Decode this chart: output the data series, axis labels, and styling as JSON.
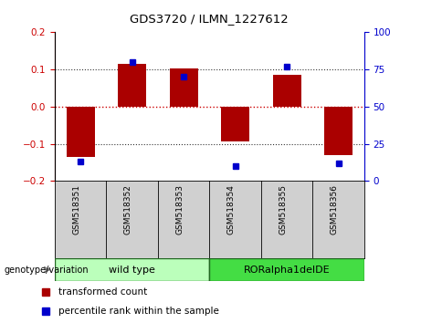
{
  "title": "GDS3720 / ILMN_1227612",
  "samples": [
    "GSM518351",
    "GSM518352",
    "GSM518353",
    "GSM518354",
    "GSM518355",
    "GSM518356"
  ],
  "bar_values": [
    -0.135,
    0.115,
    0.103,
    -0.095,
    0.085,
    -0.13
  ],
  "dot_values": [
    13,
    80,
    70,
    10,
    77,
    12
  ],
  "ylim_left": [
    -0.2,
    0.2
  ],
  "ylim_right": [
    0,
    100
  ],
  "yticks_left": [
    -0.2,
    -0.1,
    0,
    0.1,
    0.2
  ],
  "yticks_right": [
    0,
    25,
    50,
    75,
    100
  ],
  "bar_color": "#aa0000",
  "dot_color": "#0000cc",
  "hline_color": "#cc0000",
  "dotted_color": "#333333",
  "legend_bar_label": "transformed count",
  "legend_dot_label": "percentile rank within the sample",
  "genotype_label": "genotype/variation",
  "group1_label": "wild type",
  "group2_label": "RORalpha1delDE",
  "group1_color": "#bbffbb",
  "group2_color": "#44dd44",
  "sample_bg_color": "#d0d0d0",
  "left_axis_color": "#cc0000",
  "right_axis_color": "#0000cc"
}
